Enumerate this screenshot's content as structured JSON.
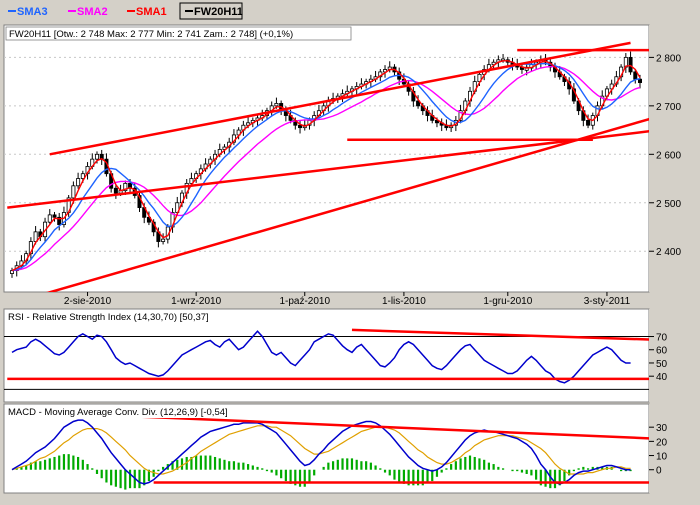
{
  "legend": [
    {
      "label": "SMA3",
      "color": "#1e64ff"
    },
    {
      "label": "SMA2",
      "color": "#ff00ff"
    },
    {
      "label": "SMA1",
      "color": "#ff0000"
    },
    {
      "label": "FW20H11",
      "color": "#000000"
    }
  ],
  "colors": {
    "frame_bg": "#d4d0c8",
    "panel_bg": "#ffffff",
    "trend": "#ff0000",
    "candle": "#000000",
    "sma_fast": "#ff0000",
    "sma_mid": "#1e64ff",
    "sma_slow": "#ff00ff",
    "rsi": "#0000cc",
    "macd": "#0000cc",
    "macd_signal": "#e0a000",
    "hist": "#00aa00"
  },
  "chart_data": [
    {
      "type": "candlestick",
      "title": "FW20H11 [Otw.: 2 748  Max: 2 777  Min: 2 741  Zam.: 2 748] (+0,1%)",
      "ylim": [
        2320,
        2840
      ],
      "y_ticks": [
        "2 400",
        "2 500",
        "2 600",
        "2 700",
        "2 800"
      ],
      "y_tick_values": [
        2400,
        2500,
        2600,
        2700,
        2800
      ],
      "x_tick_labels": [
        "2-sie-2010",
        "1-wrz-2010",
        "1-paź-2010",
        "1-lis-2010",
        "1-gru-2010",
        "3-sty-2011"
      ],
      "x_tick_index": [
        16,
        39,
        62,
        83,
        105,
        126
      ],
      "close": [
        2360,
        2370,
        2380,
        2395,
        2420,
        2440,
        2430,
        2460,
        2475,
        2470,
        2455,
        2480,
        2510,
        2535,
        2550,
        2560,
        2575,
        2590,
        2600,
        2590,
        2560,
        2530,
        2520,
        2525,
        2540,
        2530,
        2515,
        2490,
        2470,
        2460,
        2440,
        2420,
        2425,
        2450,
        2480,
        2500,
        2520,
        2540,
        2550,
        2560,
        2570,
        2580,
        2590,
        2600,
        2610,
        2615,
        2625,
        2640,
        2650,
        2660,
        2665,
        2670,
        2675,
        2680,
        2690,
        2700,
        2705,
        2690,
        2680,
        2670,
        2660,
        2655,
        2660,
        2670,
        2680,
        2690,
        2700,
        2710,
        2715,
        2720,
        2725,
        2730,
        2735,
        2740,
        2745,
        2750,
        2755,
        2760,
        2770,
        2775,
        2780,
        2770,
        2755,
        2745,
        2730,
        2710,
        2700,
        2690,
        2680,
        2670,
        2665,
        2660,
        2655,
        2660,
        2670,
        2690,
        2710,
        2730,
        2750,
        2765,
        2775,
        2785,
        2790,
        2795,
        2795,
        2790,
        2785,
        2780,
        2775,
        2778,
        2785,
        2790,
        2795,
        2790,
        2780,
        2770,
        2760,
        2750,
        2735,
        2710,
        2690,
        2670,
        2660,
        2680,
        2700,
        2720,
        2735,
        2745,
        2760,
        2780,
        2800,
        2770,
        2755,
        2748
      ],
      "sma_fast": [
        2360,
        2365,
        2370,
        2381,
        2398,
        2418,
        2430,
        2443,
        2455,
        2468,
        2467,
        2468,
        2481,
        2502,
        2525,
        2545,
        2562,
        2575,
        2587,
        2591,
        2583,
        2560,
        2537,
        2525,
        2528,
        2531,
        2527,
        2512,
        2492,
        2473,
        2457,
        2440,
        2428,
        2432,
        2452,
        2477,
        2500,
        2520,
        2537,
        2550,
        2560,
        2570,
        2580,
        2590,
        2600,
        2608,
        2617,
        2627,
        2638,
        2650,
        2658,
        2665,
        2670,
        2675,
        2682,
        2690,
        2698,
        2698,
        2692,
        2680,
        2670,
        2662,
        2658,
        2662,
        2670,
        2680,
        2690,
        2700,
        2708,
        2715,
        2720,
        2725,
        2730,
        2735,
        2740,
        2745,
        2750,
        2755,
        2762,
        2768,
        2775,
        2775,
        2768,
        2757,
        2743,
        2728,
        2713,
        2700,
        2690,
        2680,
        2672,
        2665,
        2660,
        2658,
        2662,
        2673,
        2690,
        2710,
        2730,
        2748,
        2763,
        2775,
        2783,
        2790,
        2793,
        2793,
        2790,
        2785,
        2780,
        2778,
        2779,
        2784,
        2790,
        2792,
        2788,
        2780,
        2770,
        2760,
        2748,
        2732,
        2712,
        2690,
        2673,
        2670,
        2680,
        2700,
        2718,
        2733,
        2747,
        2762,
        2782,
        2783,
        2775,
        2758
      ],
      "sma_mid": [
        2360,
        2362,
        2366,
        2372,
        2383,
        2396,
        2408,
        2419,
        2431,
        2444,
        2452,
        2460,
        2468,
        2479,
        2493,
        2509,
        2523,
        2537,
        2551,
        2562,
        2569,
        2571,
        2569,
        2561,
        2553,
        2544,
        2535,
        2526,
        2514,
        2500,
        2488,
        2474,
        2460,
        2451,
        2452,
        2459,
        2470,
        2483,
        2499,
        2515,
        2532,
        2547,
        2560,
        2572,
        2583,
        2594,
        2603,
        2613,
        2622,
        2632,
        2641,
        2650,
        2658,
        2665,
        2672,
        2679,
        2685,
        2689,
        2690,
        2688,
        2684,
        2679,
        2675,
        2673,
        2673,
        2675,
        2680,
        2685,
        2692,
        2698,
        2705,
        2711,
        2717,
        2722,
        2728,
        2733,
        2738,
        2743,
        2748,
        2753,
        2759,
        2762,
        2763,
        2762,
        2759,
        2752,
        2743,
        2732,
        2721,
        2709,
        2698,
        2687,
        2677,
        2670,
        2666,
        2666,
        2670,
        2679,
        2691,
        2704,
        2718,
        2733,
        2746,
        2757,
        2767,
        2775,
        2781,
        2785,
        2786,
        2786,
        2786,
        2786,
        2787,
        2787,
        2786,
        2783,
        2779,
        2773,
        2765,
        2754,
        2740,
        2725,
        2710,
        2699,
        2694,
        2693,
        2697,
        2704,
        2713,
        2724,
        2737,
        2749,
        2754,
        2756
      ],
      "sma_slow": [
        2360,
        2361,
        2363,
        2366,
        2372,
        2379,
        2387,
        2395,
        2404,
        2414,
        2423,
        2432,
        2441,
        2451,
        2462,
        2474,
        2486,
        2498,
        2510,
        2521,
        2531,
        2538,
        2542,
        2544,
        2544,
        2543,
        2541,
        2537,
        2532,
        2524,
        2515,
        2505,
        2494,
        2484,
        2477,
        2474,
        2474,
        2477,
        2483,
        2491,
        2500,
        2511,
        2522,
        2533,
        2544,
        2555,
        2565,
        2575,
        2585,
        2594,
        2603,
        2612,
        2621,
        2629,
        2637,
        2645,
        2652,
        2658,
        2663,
        2667,
        2669,
        2670,
        2671,
        2671,
        2671,
        2672,
        2673,
        2676,
        2679,
        2683,
        2688,
        2693,
        2698,
        2703,
        2708,
        2714,
        2719,
        2725,
        2730,
        2736,
        2741,
        2745,
        2749,
        2751,
        2752,
        2751,
        2748,
        2743,
        2737,
        2730,
        2722,
        2714,
        2706,
        2698,
        2691,
        2686,
        2683,
        2682,
        2684,
        2689,
        2695,
        2703,
        2712,
        2721,
        2731,
        2740,
        2748,
        2756,
        2762,
        2767,
        2771,
        2775,
        2778,
        2780,
        2781,
        2781,
        2780,
        2777,
        2772,
        2766,
        2758,
        2749,
        2739,
        2730,
        2722,
        2716,
        2713,
        2712,
        2714,
        2718,
        2724,
        2730,
        2735,
        2738
      ],
      "trendlines": [
        {
          "from": [
            8,
            2600
          ],
          "to": [
            131,
            2830
          ]
        },
        {
          "from": [
            -1,
            2290
          ],
          "to": [
            150,
            2715
          ]
        },
        {
          "from": [
            -1,
            2490
          ],
          "to": [
            150,
            2665
          ]
        },
        {
          "from": [
            71,
            2630
          ],
          "to": [
            123,
            2630
          ]
        },
        {
          "from": [
            113,
            2630
          ],
          "to": [
            123,
            2630
          ]
        },
        {
          "from": [
            107,
            2815
          ],
          "to": [
            145,
            2815
          ]
        }
      ]
    },
    {
      "type": "line",
      "title": "RSI - Relative Strength Index (14,30,70) [50,37]",
      "ylim": [
        22,
        84
      ],
      "y_ticks": [
        "40",
        "50",
        "60",
        "70"
      ],
      "y_tick_values": [
        40,
        50,
        60,
        70
      ],
      "ref_lines": [
        30,
        70
      ],
      "rsi": [
        58,
        60,
        61,
        62,
        66,
        68,
        66,
        63,
        60,
        57,
        56,
        58,
        62,
        66,
        70,
        72,
        70,
        68,
        71,
        70,
        66,
        60,
        54,
        51,
        49,
        50,
        48,
        46,
        44,
        42,
        41,
        40,
        41,
        44,
        48,
        52,
        56,
        58,
        60,
        62,
        64,
        66,
        67,
        64,
        62,
        66,
        68,
        64,
        60,
        62,
        66,
        70,
        74,
        70,
        64,
        58,
        56,
        58,
        54,
        50,
        48,
        52,
        56,
        60,
        66,
        68,
        70,
        72,
        71,
        67,
        63,
        60,
        58,
        62,
        64,
        60,
        56,
        52,
        48,
        47,
        50,
        54,
        60,
        64,
        66,
        64,
        60,
        56,
        52,
        48,
        46,
        45,
        48,
        52,
        56,
        60,
        63,
        64,
        60,
        56,
        52,
        50,
        48,
        46,
        44,
        42,
        42,
        44,
        48,
        52,
        55,
        52,
        48,
        44,
        42,
        38,
        36,
        35,
        37,
        40,
        44,
        48,
        52,
        56,
        58,
        60,
        62,
        60,
        56,
        52,
        50,
        50
      ],
      "trendlines": [
        {
          "from": [
            72,
            75
          ],
          "to": [
            150,
            66
          ]
        },
        {
          "from": [
            -1,
            38
          ],
          "to": [
            140,
            38
          ]
        }
      ]
    },
    {
      "type": "line",
      "title": "MACD - Moving Average Conv. Div. (12,26,9) [-0,54]",
      "ylim": [
        -15,
        40
      ],
      "y_ticks": [
        "0",
        "10",
        "20",
        "30"
      ],
      "y_tick_values": [
        0,
        10,
        20,
        30
      ],
      "macd": [
        0,
        2,
        4,
        6,
        9,
        12,
        14,
        16,
        19,
        22,
        26,
        30,
        32,
        34,
        35,
        35,
        33,
        30,
        26,
        22,
        17,
        12,
        8,
        4,
        0,
        -3,
        -6,
        -9,
        -10,
        -9,
        -7,
        -4,
        -1,
        2,
        5,
        8,
        11,
        14,
        17,
        20,
        23,
        25,
        27,
        28,
        29,
        30,
        31,
        32,
        32,
        33,
        33,
        33,
        33,
        32,
        30,
        28,
        26,
        22,
        18,
        14,
        10,
        6,
        3,
        4,
        7,
        11,
        14,
        18,
        21,
        24,
        27,
        29,
        31,
        32,
        33,
        34,
        34,
        33,
        31,
        28,
        25,
        21,
        17,
        13,
        9,
        6,
        3,
        1,
        0,
        -1,
        0,
        2,
        5,
        9,
        13,
        17,
        21,
        24,
        26,
        27,
        28,
        27,
        27,
        26,
        25,
        24,
        23,
        22,
        20,
        18,
        15,
        10,
        4,
        0,
        -5,
        -9,
        -10,
        -9,
        -7,
        -4,
        -2,
        -1,
        -1,
        0,
        1,
        2,
        3,
        3,
        2,
        1,
        0,
        0
      ],
      "signal": [
        0,
        1,
        2,
        3,
        4,
        6,
        8,
        9,
        11,
        13,
        16,
        19,
        21,
        24,
        26,
        28,
        29,
        29,
        29,
        28,
        26,
        23,
        20,
        17,
        14,
        10,
        7,
        4,
        1,
        -1,
        -2,
        -3,
        -3,
        -2,
        -1,
        1,
        3,
        5,
        8,
        10,
        13,
        15,
        17,
        19,
        21,
        23,
        25,
        26,
        27,
        28,
        29,
        30,
        31,
        31,
        31,
        30,
        30,
        28,
        26,
        24,
        21,
        18,
        15,
        13,
        11,
        11,
        12,
        13,
        15,
        17,
        19,
        21,
        23,
        25,
        27,
        28,
        29,
        30,
        30,
        30,
        29,
        28,
        26,
        23,
        20,
        17,
        14,
        12,
        9,
        7,
        5,
        4,
        4,
        5,
        7,
        9,
        12,
        14,
        17,
        19,
        21,
        22,
        23,
        24,
        24,
        24,
        24,
        23,
        22,
        21,
        19,
        17,
        15,
        12,
        8,
        4,
        1,
        -1,
        -3,
        -3,
        -3,
        -3,
        -2,
        -2,
        -1,
        0,
        1,
        1,
        2,
        2,
        1,
        1
      ],
      "trendlines": [
        {
          "from": [
            23,
            38
          ],
          "to": [
            150,
            20
          ]
        },
        {
          "from": [
            30,
            -9
          ],
          "to": [
            145,
            -9
          ]
        }
      ]
    }
  ]
}
